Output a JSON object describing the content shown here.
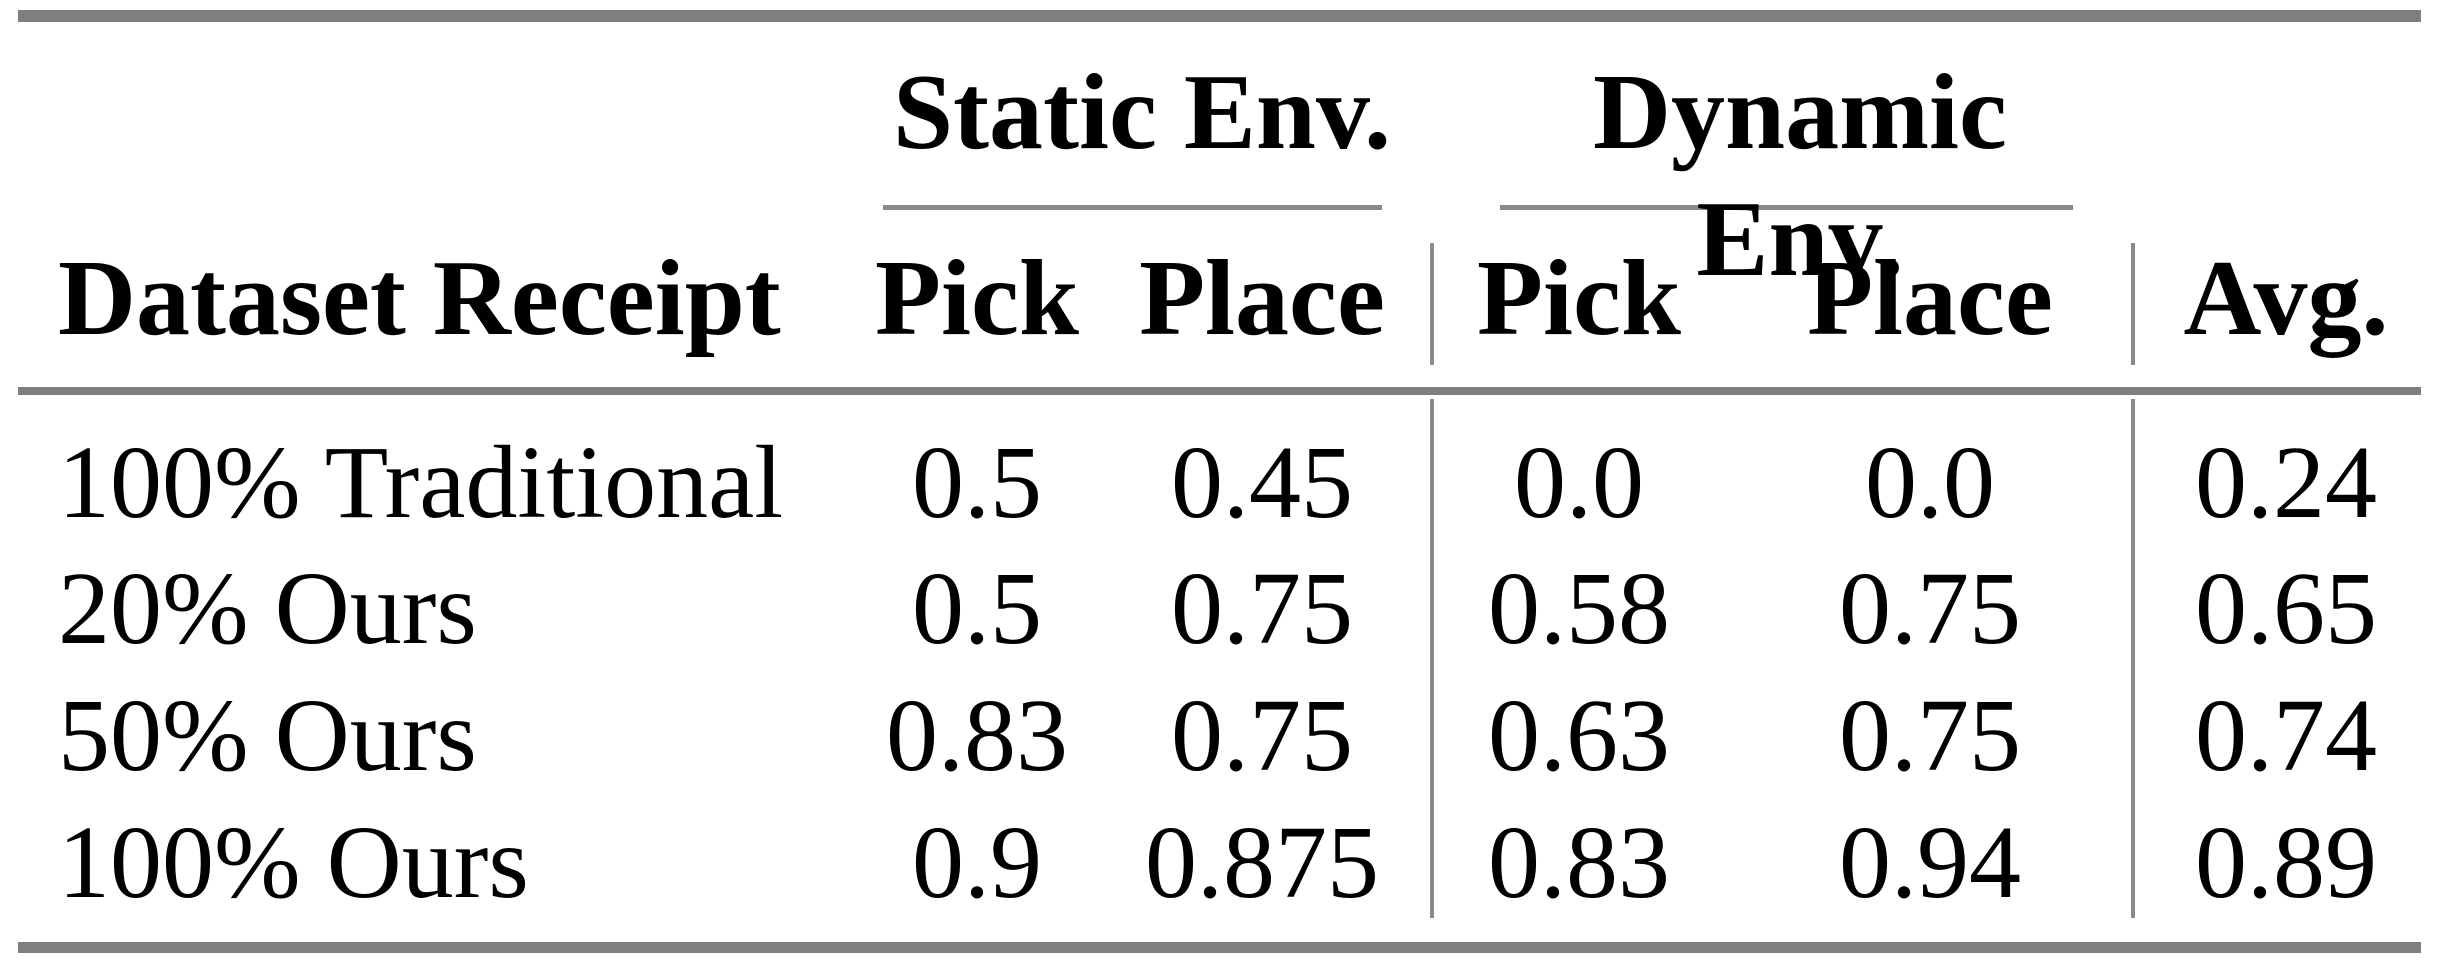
{
  "table": {
    "groups": [
      {
        "label": "Static Env."
      },
      {
        "label": "Dynamic Env."
      }
    ],
    "header": {
      "row_header": "Dataset Receipt",
      "static_pick": "Pick",
      "static_place": "Place",
      "dynamic_pick": "Pick",
      "dynamic_place": "Place",
      "avg": "Avg."
    },
    "rows": [
      {
        "label": "100% Traditional",
        "static_pick": "0.5",
        "static_place": "0.45",
        "dynamic_pick": "0.0",
        "dynamic_place": "0.0",
        "avg": "0.24"
      },
      {
        "label": "20% Ours",
        "static_pick": "0.5",
        "static_place": "0.75",
        "dynamic_pick": "0.58",
        "dynamic_place": "0.75",
        "avg": "0.65"
      },
      {
        "label": "50% Ours",
        "static_pick": "0.83",
        "static_place": "0.75",
        "dynamic_pick": "0.63",
        "dynamic_place": "0.75",
        "avg": "0.74"
      },
      {
        "label": "100% Ours",
        "static_pick": "0.9",
        "static_place": "0.875",
        "dynamic_pick": "0.83",
        "dynamic_place": "0.94",
        "avg": "0.89"
      }
    ],
    "colors": {
      "thick_rule": "#7f7f7f",
      "thin_rule": "#8a8a8a",
      "text": "#000000",
      "background": "#ffffff"
    }
  },
  "chart_data": {
    "type": "table",
    "title": "",
    "column_groups": [
      "",
      "Static Env.",
      "Static Env.",
      "Dynamic Env.",
      "Dynamic Env.",
      ""
    ],
    "columns": [
      "Dataset Receipt",
      "Pick",
      "Place",
      "Pick",
      "Place",
      "Avg."
    ],
    "rows": [
      [
        "100% Traditional",
        0.5,
        0.45,
        0.0,
        0.0,
        0.24
      ],
      [
        "20% Ours",
        0.5,
        0.75,
        0.58,
        0.75,
        0.65
      ],
      [
        "50% Ours",
        0.83,
        0.75,
        0.63,
        0.75,
        0.74
      ],
      [
        "100% Ours",
        0.9,
        0.875,
        0.83,
        0.94,
        0.89
      ]
    ]
  }
}
